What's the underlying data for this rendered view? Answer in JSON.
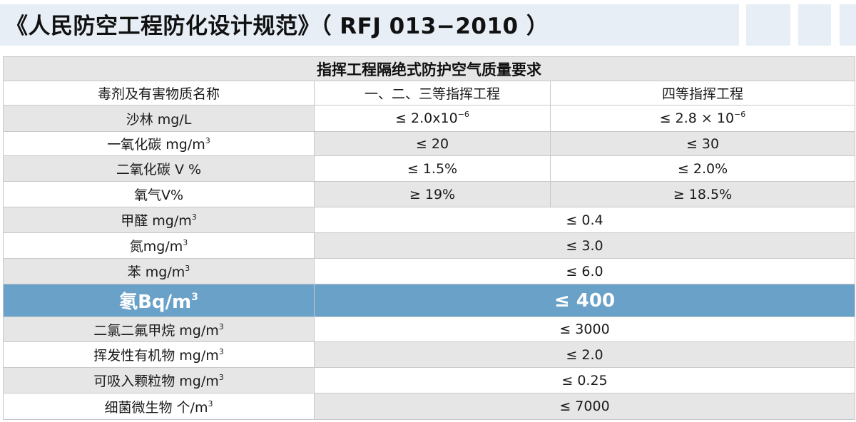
{
  "title": "《人民防空工程防化设计规范》（ RFJ 013−2010 ）",
  "table": {
    "caption": "指挥工程隔绝式防护空气质量要求",
    "headers": [
      "毒剂及有害物质名称",
      "一、二、三等指挥工程",
      "四等指挥工程"
    ],
    "rows": [
      {
        "name": "沙林 mg/L",
        "name_sup": "",
        "v1": "≤ 2.0x10",
        "v1_sup": "−6",
        "v2": "≤ 2.8 × 10",
        "v2_sup": "−6"
      },
      {
        "name": "一氧化碳 mg/m",
        "name_sup": "3",
        "v1": "≤ 20",
        "v2": "≤ 30"
      },
      {
        "name": "二氧化碳 V %",
        "name_sup": "",
        "v1": "≤ 1.5%",
        "v2": "≤ 2.0%"
      },
      {
        "name": "氧气V%",
        "name_sup": "",
        "v1": "≥ 19%",
        "v2": "≥ 18.5%"
      },
      {
        "name": "甲醛 mg/m",
        "name_sup": "3",
        "v": "≤ 0.4"
      },
      {
        "name": "氮mg/m",
        "name_sup": "3",
        "v": "≤ 3.0"
      },
      {
        "name": "苯 mg/m",
        "name_sup": "3",
        "v": "≤ 6.0"
      },
      {
        "name": "氡Bq/m",
        "name_sup": "3",
        "v": "≤ 400",
        "highlight": true
      },
      {
        "name": "二氯二氟甲烷 mg/m",
        "name_sup": "3",
        "v": "≤ 3000"
      },
      {
        "name": "挥发性有机物 mg/m",
        "name_sup": "3",
        "v": "≤ 2.0"
      },
      {
        "name": "可吸入颗粒物 mg/m",
        "name_sup": "3",
        "v": "≤ 0.25"
      },
      {
        "name": "细菌微生物 个/m",
        "name_sup": "3",
        "v": "≤ 7000"
      }
    ]
  },
  "colors": {
    "title_band": "#e7eef6",
    "highlight_row": "#6aa1c8",
    "stripe": "#e6e6e6"
  }
}
